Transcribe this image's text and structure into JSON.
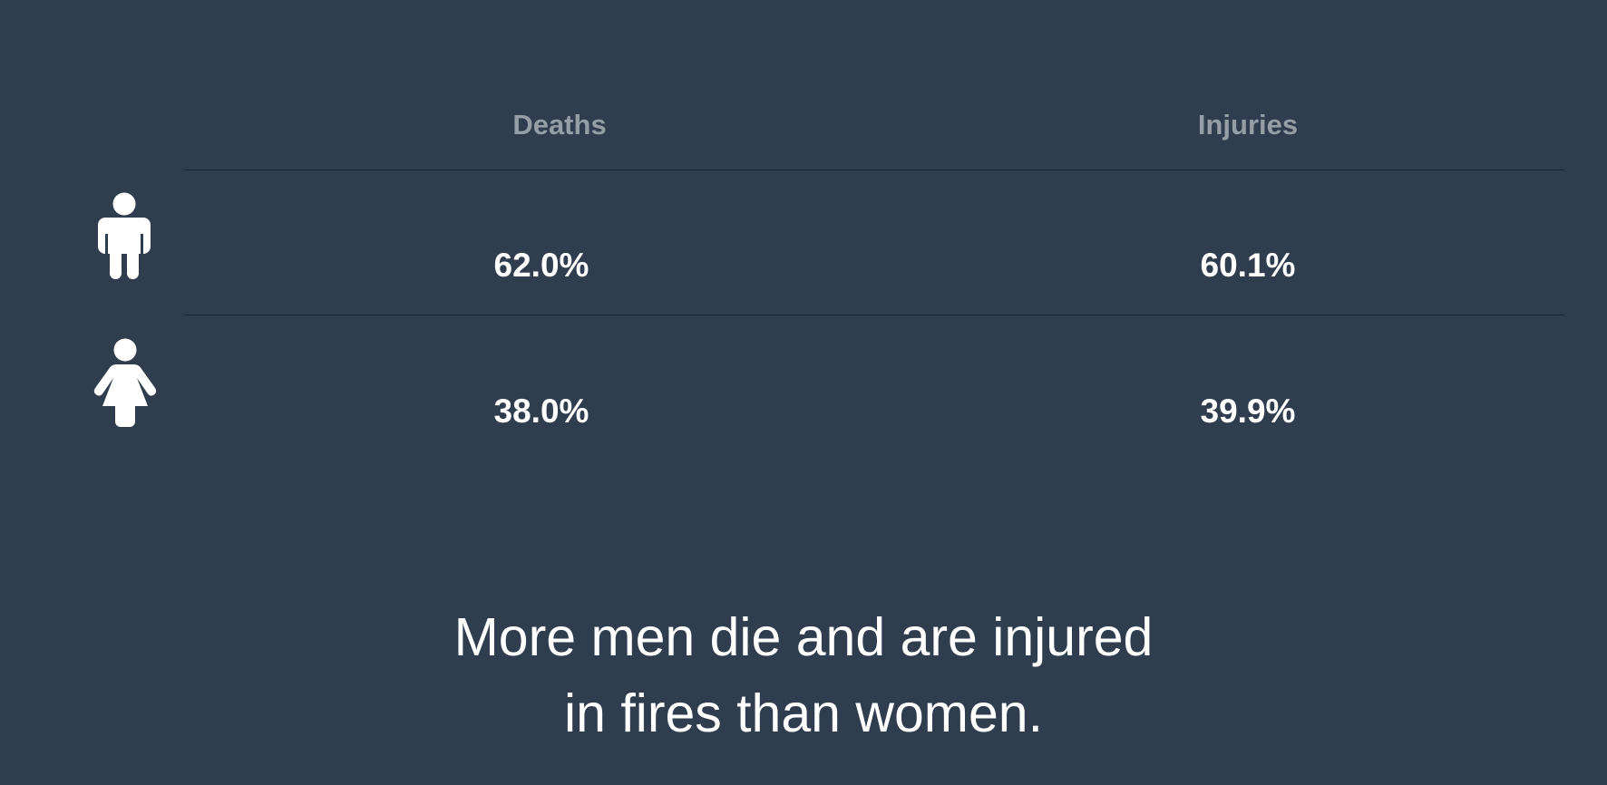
{
  "chart_data": {
    "type": "table",
    "columns": [
      "Deaths",
      "Injuries"
    ],
    "rows": [
      {
        "icon": "man-icon",
        "values": [
          "62.0%",
          "60.1%"
        ]
      },
      {
        "icon": "woman-icon",
        "values": [
          "38.0%",
          "39.9%"
        ]
      }
    ]
  },
  "caption": {
    "line1": "More men die and are injured",
    "line2": "in fires than women."
  },
  "colors": {
    "background": "#2f3d4f",
    "header_text": "#959da6",
    "value_text": "#ffffff",
    "divider": "#1a232e"
  }
}
